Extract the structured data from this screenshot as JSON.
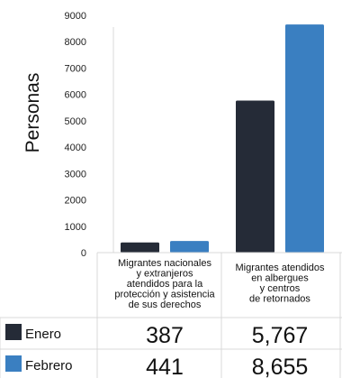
{
  "chart_data": {
    "type": "bar",
    "ylabel": "Personas",
    "ylim": [
      0,
      9000
    ],
    "yticks": [
      0,
      1000,
      2000,
      3000,
      4000,
      5000,
      6000,
      7000,
      8000,
      9000
    ],
    "categories": [
      "Migrantes nacionales\ny extranjeros\natendidos para la\nprotección y asistencia\nde sus derechos",
      "Migrantes atendidos\nen albergues\ny centros\nde retornados"
    ],
    "series": [
      {
        "name": "Enero",
        "values": [
          387,
          5767
        ],
        "labels": [
          "387",
          "5,767"
        ],
        "color": "#252b37"
      },
      {
        "name": "Febrero",
        "values": [
          441,
          8655
        ],
        "labels": [
          "441",
          "8,655"
        ],
        "color": "#3a7fc1"
      }
    ],
    "grid": false,
    "legend": "bottom-table"
  }
}
